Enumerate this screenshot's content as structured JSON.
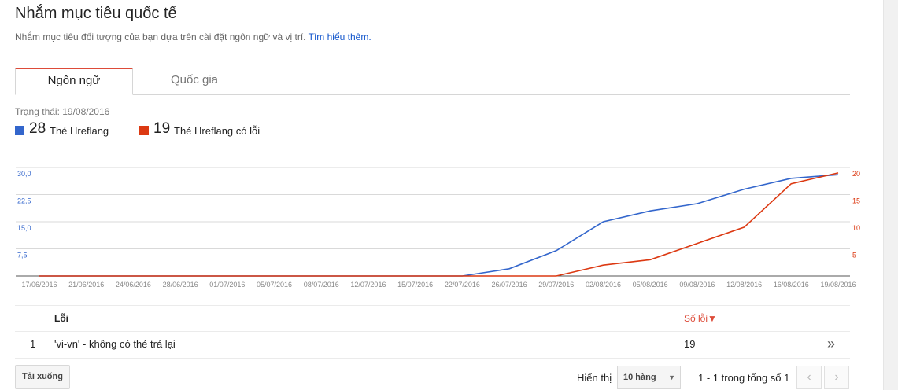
{
  "page": {
    "title": "Nhắm mục tiêu quốc tế",
    "subtitle": "Nhắm mục tiêu đối tượng của bạn dựa trên cài đặt ngôn ngữ và vị trí.",
    "learn_more": "Tìm hiểu thêm."
  },
  "tabs": [
    {
      "label": "Ngôn ngữ",
      "active": true
    },
    {
      "label": "Quốc gia",
      "active": false
    }
  ],
  "status": "Trạng thái: 19/08/2016",
  "legend": [
    {
      "count": "28",
      "label": "Thẻ Hreflang",
      "color": "#3366cc"
    },
    {
      "count": "19",
      "label": "Thẻ Hreflang có lỗi",
      "color": "#dc3912"
    }
  ],
  "chart_data": {
    "type": "line",
    "x": [
      "17/06/2016",
      "21/06/2016",
      "24/06/2016",
      "28/06/2016",
      "01/07/2016",
      "05/07/2016",
      "08/07/2016",
      "12/07/2016",
      "15/07/2016",
      "22/07/2016",
      "26/07/2016",
      "29/07/2016",
      "02/08/2016",
      "05/08/2016",
      "09/08/2016",
      "12/08/2016",
      "16/08/2016",
      "19/08/2016"
    ],
    "y_left_ticks": [
      "30,0",
      "22,5",
      "15,0",
      "7,5"
    ],
    "y_right_ticks": [
      "20",
      "15",
      "10",
      "5"
    ],
    "ylim_left": [
      0,
      30
    ],
    "ylim_right": [
      0,
      20
    ],
    "series": [
      {
        "name": "Thẻ Hreflang",
        "axis": "left",
        "color": "#3366cc",
        "values": [
          0,
          0,
          0,
          0,
          0,
          0,
          0,
          0,
          0,
          0,
          2,
          7,
          15,
          18,
          20,
          24,
          27,
          28
        ]
      },
      {
        "name": "Thẻ Hreflang có lỗi",
        "axis": "right",
        "color": "#dc3912",
        "values": [
          0,
          0,
          0,
          0,
          0,
          0,
          0,
          0,
          0,
          0,
          0,
          0,
          2,
          3,
          6,
          9,
          17,
          19
        ]
      }
    ],
    "grid": true
  },
  "table": {
    "headers": {
      "error": "Lỗi",
      "count": "Số lỗi▼"
    },
    "rows": [
      {
        "index": "1",
        "url": "'vi-vn' - không có thẻ trả lại",
        "count": "19"
      }
    ]
  },
  "footer": {
    "download_label": "Tải xuống",
    "show_label": "Hiển thị",
    "rows_option": "10 hàng",
    "page_range": "1 - 1 trong tổng số 1",
    "prev_icon": "‹",
    "next_icon": "›"
  }
}
